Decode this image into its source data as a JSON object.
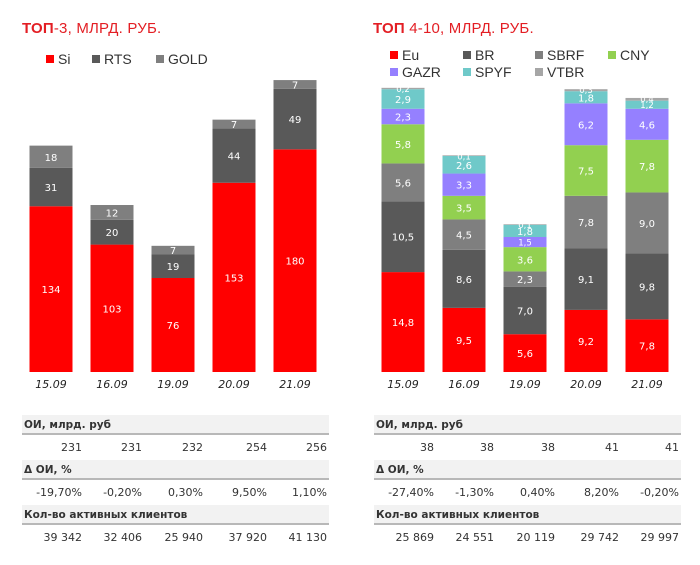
{
  "left": {
    "title_bold": "ТОП",
    "title_rest": "-3, МЛРД. РУБ.",
    "legend": [
      {
        "name": "Si",
        "color": "#ff0000"
      },
      {
        "name": "RTS",
        "color": "#595959"
      },
      {
        "name": "GOLD",
        "color": "#7f7f7f"
      }
    ],
    "table": {
      "rows": [
        {
          "label": "ОИ, млрд. руб",
          "values": [
            "231",
            "231",
            "232",
            "254",
            "256"
          ]
        },
        {
          "label": "Δ ОИ, %",
          "values": [
            "-19,70%",
            "-0,20%",
            "0,30%",
            "9,50%",
            "1,10%"
          ]
        },
        {
          "label": "Кол-во активных клиентов",
          "values": [
            "39 342",
            "32 406",
            "25 940",
            "37 920",
            "41 130"
          ]
        }
      ]
    }
  },
  "right": {
    "title_bold": "ТОП",
    "title_rest": " 4-10, МЛРД. РУБ.",
    "legend": [
      {
        "name": "Eu",
        "color": "#ff0000"
      },
      {
        "name": "BR",
        "color": "#595959"
      },
      {
        "name": "SBRF",
        "color": "#7f7f7f"
      },
      {
        "name": "CNY",
        "color": "#92d050"
      },
      {
        "name": "GAZR",
        "color": "#9580ff"
      },
      {
        "name": "SPYF",
        "color": "#6fc9c9"
      },
      {
        "name": "VTBR",
        "color": "#a6a6a6"
      }
    ],
    "table": {
      "rows": [
        {
          "label": "ОИ, млрд. руб",
          "values": [
            "38",
            "38",
            "38",
            "41",
            "41"
          ]
        },
        {
          "label": "Δ ОИ, %",
          "values": [
            "-27,40%",
            "-1,30%",
            "0,40%",
            "8,20%",
            "-0,20%"
          ]
        },
        {
          "label": "Кол-во активных клиентов",
          "values": [
            "25 869",
            "24 551",
            "20 119",
            "29 742",
            "29 997"
          ]
        }
      ]
    }
  },
  "chart_data": [
    {
      "type": "bar",
      "stacked": true,
      "title": "ТОП-3, МЛРД. РУБ.",
      "xlabel": "",
      "ylabel": "",
      "legend_position": "top-left",
      "grid": false,
      "categories": [
        "15.09",
        "16.09",
        "19.09",
        "20.09",
        "21.09"
      ],
      "series": [
        {
          "name": "Si",
          "color": "#ff0000",
          "values": [
            134,
            103,
            76,
            153,
            180
          ],
          "labels": [
            "134",
            "103",
            "76",
            "153",
            "180"
          ]
        },
        {
          "name": "RTS",
          "color": "#595959",
          "values": [
            31,
            20,
            19,
            44,
            49
          ],
          "labels": [
            "31",
            "20",
            "19",
            "44",
            "49"
          ]
        },
        {
          "name": "GOLD",
          "color": "#7f7f7f",
          "values": [
            18,
            12,
            7,
            7,
            7
          ],
          "labels": [
            "18",
            "12",
            "7",
            "7",
            "7"
          ]
        }
      ],
      "ylim": [
        0,
        236
      ]
    },
    {
      "type": "bar",
      "stacked": true,
      "title": "ТОП 4-10, МЛРД. РУБ.",
      "xlabel": "",
      "ylabel": "",
      "legend_position": "top-left",
      "grid": false,
      "categories": [
        "15.09",
        "16.09",
        "19.09",
        "20.09",
        "21.09"
      ],
      "series": [
        {
          "name": "Eu",
          "color": "#ff0000",
          "values": [
            14.8,
            9.5,
            5.6,
            9.2,
            7.8
          ],
          "labels": [
            "14,8",
            "9,5",
            "5,6",
            "9,2",
            "7,8"
          ]
        },
        {
          "name": "BR",
          "color": "#595959",
          "values": [
            10.5,
            8.6,
            7.0,
            9.1,
            9.8
          ],
          "labels": [
            "10,5",
            "8,6",
            "7,0",
            "9,1",
            "9,8"
          ]
        },
        {
          "name": "SBRF",
          "color": "#7f7f7f",
          "values": [
            5.6,
            4.5,
            2.3,
            7.8,
            9.0
          ],
          "labels": [
            "5,6",
            "4,5",
            "2,3",
            "7,8",
            "9,0"
          ]
        },
        {
          "name": "CNY",
          "color": "#92d050",
          "values": [
            5.8,
            3.5,
            3.6,
            7.5,
            7.8
          ],
          "labels": [
            "5,8",
            "3,5",
            "3,6",
            "7,5",
            "7,8"
          ]
        },
        {
          "name": "GAZR",
          "color": "#9580ff",
          "values": [
            2.3,
            3.3,
            1.5,
            6.2,
            4.6
          ],
          "labels": [
            "2,3",
            "3,3",
            "1,5",
            "6,2",
            "4,6"
          ]
        },
        {
          "name": "SPYF",
          "color": "#6fc9c9",
          "values": [
            2.9,
            2.6,
            1.8,
            1.8,
            1.2
          ],
          "labels": [
            "2,9",
            "2,6",
            "1,8",
            "1,8",
            "1,2"
          ]
        },
        {
          "name": "VTBR",
          "color": "#a6a6a6",
          "values": [
            0.2,
            0.1,
            0.1,
            0.3,
            0.4
          ],
          "labels": [
            "0,2",
            "0,1",
            "0,1",
            "0,3",
            "0,4"
          ]
        }
      ],
      "ylim": [
        0,
        42.1
      ]
    }
  ]
}
